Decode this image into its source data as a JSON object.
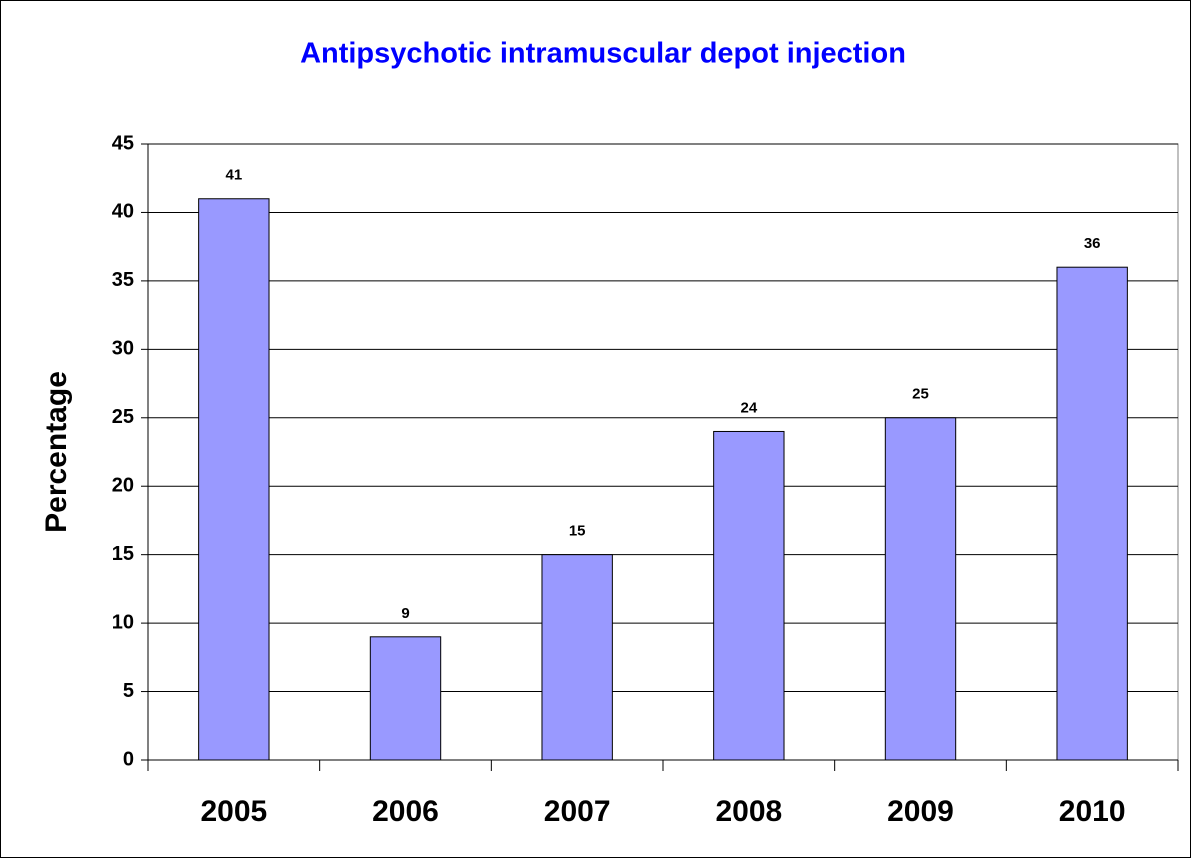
{
  "chart_data": {
    "type": "bar",
    "title": "Antipsychotic intramuscular depot injection",
    "y_label": "Percentage",
    "categories": [
      "2005",
      "2006",
      "2007",
      "2008",
      "2009",
      "2010"
    ],
    "values": [
      41,
      9,
      15,
      24,
      25,
      36
    ],
    "color": "#9999ff",
    "ylim": [
      0,
      45
    ],
    "yticks": [
      0,
      5,
      10,
      15,
      20,
      25,
      30,
      35,
      40,
      45
    ],
    "grid": true
  }
}
